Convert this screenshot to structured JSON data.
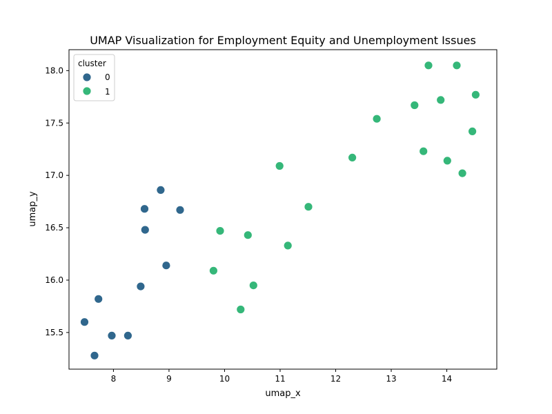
{
  "chart_data": {
    "type": "scatter",
    "title": "UMAP Visualization for Employment Equity and Unemployment Issues",
    "xlabel": "umap_x",
    "ylabel": "umap_y",
    "xlim": [
      7.2,
      14.9
    ],
    "ylim": [
      15.15,
      18.2
    ],
    "xticks": [
      8,
      9,
      10,
      11,
      12,
      13,
      14
    ],
    "yticks": [
      15.5,
      16.0,
      16.5,
      17.0,
      17.5,
      18.0
    ],
    "ytick_labels": [
      "15.5",
      "16.0",
      "16.5",
      "17.0",
      "17.5",
      "18.0"
    ],
    "grid": false,
    "legend": {
      "title": "cluster",
      "placement": "top-left"
    },
    "series": [
      {
        "name": "0",
        "color": "#30678d",
        "points": [
          {
            "x": 7.48,
            "y": 15.6
          },
          {
            "x": 7.66,
            "y": 15.28
          },
          {
            "x": 7.73,
            "y": 15.82
          },
          {
            "x": 7.97,
            "y": 15.47
          },
          {
            "x": 8.26,
            "y": 15.47
          },
          {
            "x": 8.49,
            "y": 15.94
          },
          {
            "x": 8.56,
            "y": 16.68
          },
          {
            "x": 8.57,
            "y": 16.48
          },
          {
            "x": 8.85,
            "y": 16.86
          },
          {
            "x": 8.95,
            "y": 16.14
          },
          {
            "x": 9.2,
            "y": 16.67
          }
        ]
      },
      {
        "name": "1",
        "color": "#35b779",
        "points": [
          {
            "x": 9.8,
            "y": 16.09
          },
          {
            "x": 9.92,
            "y": 16.47
          },
          {
            "x": 10.29,
            "y": 15.72
          },
          {
            "x": 10.42,
            "y": 16.43
          },
          {
            "x": 10.52,
            "y": 15.95
          },
          {
            "x": 10.99,
            "y": 17.09
          },
          {
            "x": 11.14,
            "y": 16.33
          },
          {
            "x": 11.51,
            "y": 16.7
          },
          {
            "x": 12.3,
            "y": 17.17
          },
          {
            "x": 12.74,
            "y": 17.54
          },
          {
            "x": 13.42,
            "y": 17.67
          },
          {
            "x": 13.58,
            "y": 17.23
          },
          {
            "x": 13.67,
            "y": 18.05
          },
          {
            "x": 13.89,
            "y": 17.72
          },
          {
            "x": 14.01,
            "y": 17.14
          },
          {
            "x": 14.18,
            "y": 18.05
          },
          {
            "x": 14.28,
            "y": 17.02
          },
          {
            "x": 14.46,
            "y": 17.42
          },
          {
            "x": 14.52,
            "y": 17.77
          }
        ]
      }
    ]
  }
}
